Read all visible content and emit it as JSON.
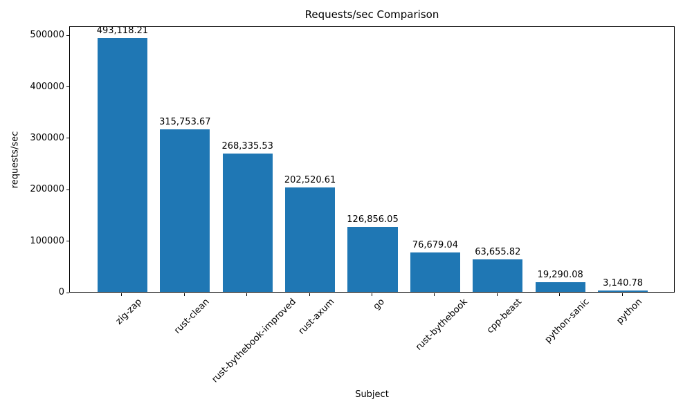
{
  "chart_data": {
    "type": "bar",
    "title": "Requests/sec Comparison",
    "xlabel": "Subject",
    "ylabel": "requests/sec",
    "categories": [
      "zig-zap",
      "rust-clean",
      "rust-bythebook-improved",
      "rust-axum",
      "go",
      "rust-bythebook",
      "cpp-beast",
      "python-sanic",
      "python"
    ],
    "values": [
      493118.21,
      315753.67,
      268335.53,
      202520.61,
      126856.05,
      76679.04,
      63655.82,
      19290.08,
      3140.78
    ],
    "value_labels": [
      "493,118.21",
      "315,753.67",
      "268,335.53",
      "202,520.61",
      "126,856.05",
      "76,679.04",
      "63,655.82",
      "19,290.08",
      "3,140.78"
    ],
    "y_ticks": [
      0,
      100000,
      200000,
      300000,
      400000,
      500000
    ],
    "ylim": [
      0,
      517774
    ],
    "bar_color": "#1f77b4",
    "grid": false,
    "legend_position": "none"
  }
}
